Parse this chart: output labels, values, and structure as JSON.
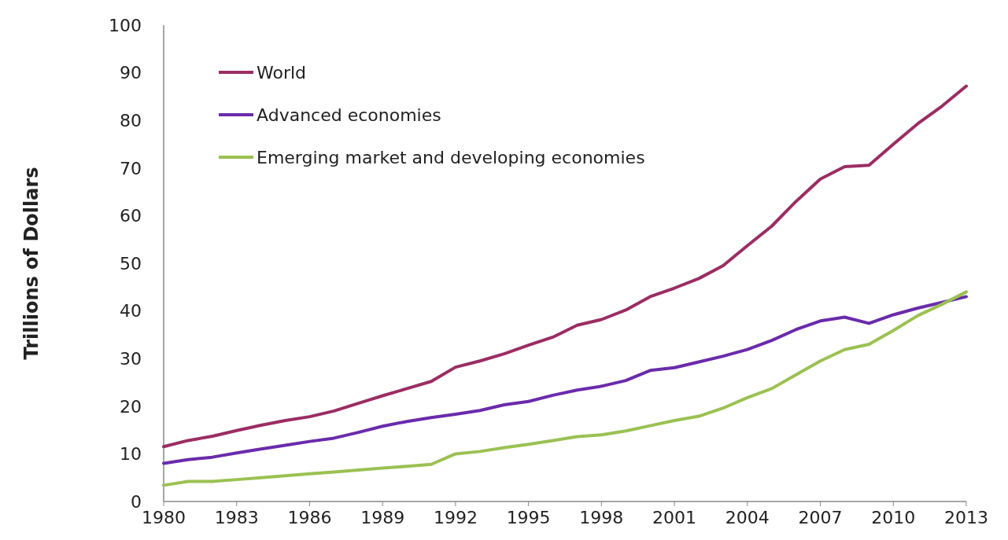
{
  "chart_data": {
    "type": "line",
    "ylabel": "Trillions of Dollars",
    "x": [
      1980,
      1981,
      1982,
      1983,
      1984,
      1985,
      1986,
      1987,
      1988,
      1989,
      1990,
      1991,
      1992,
      1993,
      1994,
      1995,
      1996,
      1997,
      1998,
      1999,
      2000,
      2001,
      2002,
      2003,
      2004,
      2005,
      2006,
      2007,
      2008,
      2009,
      2010,
      2011,
      2012,
      2013
    ],
    "xlim": [
      1980,
      2013
    ],
    "xticks": [
      1980,
      1983,
      1986,
      1989,
      1992,
      1995,
      1998,
      2001,
      2004,
      2007,
      2010,
      2013
    ],
    "ylim": [
      0,
      100
    ],
    "yticks": [
      0,
      10,
      20,
      30,
      40,
      50,
      60,
      70,
      80,
      90,
      100
    ],
    "grid": false,
    "legend": "top left",
    "marker": "none",
    "line_style": "solid",
    "series": [
      {
        "name": "World",
        "color": "#9b2d63",
        "values": [
          11.5,
          12.8,
          13.7,
          14.9,
          16,
          17,
          17.8,
          19,
          20.6,
          22.2,
          23.7,
          25.2,
          28.2,
          29.5,
          31,
          32.8,
          34.5,
          37,
          38.2,
          40.2,
          43,
          44.8,
          46.8,
          49.5,
          53.7,
          57.8,
          63,
          67.7,
          70.3,
          70.6,
          75,
          79.3,
          83,
          87.2
        ]
      },
      {
        "name": "Advanced economies",
        "color": "#6a2bab",
        "values": [
          8,
          8.8,
          9.3,
          10.2,
          11,
          11.8,
          12.6,
          13.3,
          14.5,
          15.8,
          16.8,
          17.6,
          18.3,
          19.1,
          20.3,
          21,
          22.3,
          23.4,
          24.2,
          25.4,
          27.5,
          28.1,
          29.3,
          30.5,
          31.9,
          33.8,
          36.1,
          37.9,
          38.7,
          37.4,
          39.2,
          40.6,
          41.8,
          43
        ]
      },
      {
        "name": "Emerging market and developing economies",
        "color": "#9bc152",
        "values": [
          3.4,
          4.2,
          4.2,
          4.6,
          5,
          5.4,
          5.8,
          6.2,
          6.6,
          7,
          7.4,
          7.8,
          10,
          10.5,
          11.3,
          12,
          12.8,
          13.6,
          14,
          14.8,
          15.9,
          17,
          17.9,
          19.6,
          21.8,
          23.7,
          26.6,
          29.5,
          31.9,
          33,
          35.9,
          39,
          41.4,
          44
        ]
      }
    ]
  }
}
